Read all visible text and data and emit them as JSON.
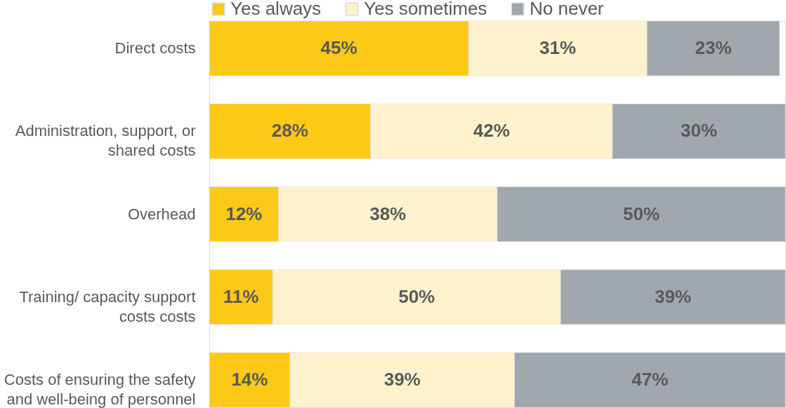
{
  "chart_data": {
    "type": "bar",
    "orientation": "horizontal",
    "stacked": true,
    "tick_labels": "y",
    "legend": "top",
    "categories": [
      "Direct costs",
      "Administration, support, or shared costs",
      "Overhead",
      "Training/ capacity support costs costs",
      "Costs of ensuring the safety and well-being of personnel"
    ],
    "series": [
      {
        "name": "Yes always",
        "color": "#fcc917",
        "values": [
          45,
          28,
          12,
          11,
          14
        ],
        "value_labels": [
          "45%",
          "28%",
          "12%",
          "11%",
          "14%"
        ]
      },
      {
        "name": "Yes sometimes",
        "color": "#fff2cc",
        "values": [
          31,
          42,
          38,
          50,
          39
        ],
        "value_labels": [
          "31%",
          "42%",
          "38%",
          "50%",
          "39%"
        ]
      },
      {
        "name": "No never",
        "color": "#a0a8ad",
        "values": [
          23,
          30,
          50,
          39,
          47
        ],
        "value_labels": [
          "23%",
          "30%",
          "50%",
          "39%",
          "47%"
        ]
      }
    ]
  }
}
